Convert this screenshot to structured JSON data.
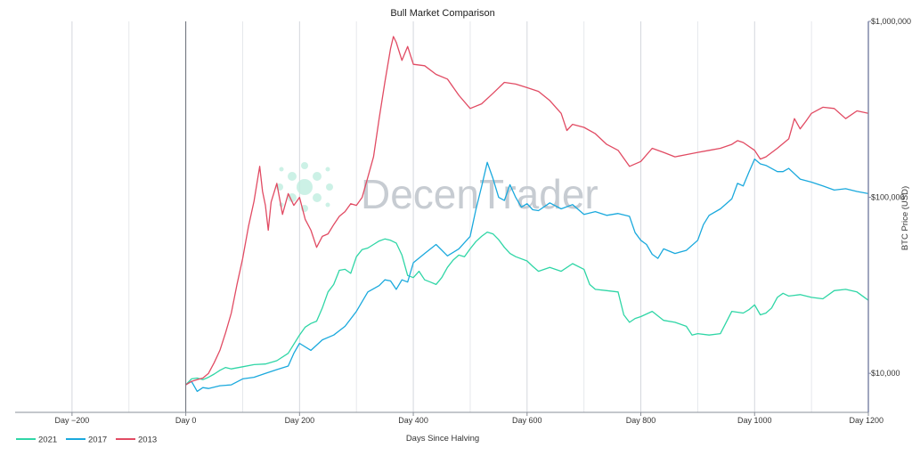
{
  "chart_data": {
    "type": "line",
    "title": "Bull Market Comparison",
    "xlabel": "Days Since Halving",
    "ylabel": "BTC Price (USD)",
    "xlim": [
      -300,
      1200
    ],
    "ylim": [
      6000,
      1000000
    ],
    "y_scale": "log",
    "grid": "vertical",
    "legend_position": "bottom-left",
    "x_ticks": [
      {
        "value": -200,
        "label": "Day −200"
      },
      {
        "value": 0,
        "label": "Day 0"
      },
      {
        "value": 200,
        "label": "Day 200"
      },
      {
        "value": 400,
        "label": "Day 400"
      },
      {
        "value": 600,
        "label": "Day 600"
      },
      {
        "value": 800,
        "label": "Day 800"
      },
      {
        "value": 1000,
        "label": "Day 1000"
      },
      {
        "value": 1200,
        "label": "Day 1200"
      }
    ],
    "y_ticks": [
      {
        "value": 10000,
        "label": "$10,000"
      },
      {
        "value": 100000,
        "label": "$100,000"
      },
      {
        "value": 1000000,
        "label": "$1,000,000"
      }
    ],
    "series": [
      {
        "name": "2021",
        "color": "#2fd6a6",
        "points": [
          [
            0,
            8600
          ],
          [
            10,
            9300
          ],
          [
            20,
            9400
          ],
          [
            30,
            9200
          ],
          [
            40,
            9500
          ],
          [
            50,
            9900
          ],
          [
            60,
            10400
          ],
          [
            70,
            10800
          ],
          [
            80,
            10600
          ],
          [
            100,
            10900
          ],
          [
            120,
            11200
          ],
          [
            140,
            11300
          ],
          [
            160,
            11800
          ],
          [
            180,
            13000
          ],
          [
            200,
            16500
          ],
          [
            210,
            18300
          ],
          [
            220,
            19200
          ],
          [
            230,
            19800
          ],
          [
            240,
            23500
          ],
          [
            250,
            29000
          ],
          [
            260,
            32000
          ],
          [
            270,
            38500
          ],
          [
            280,
            39000
          ],
          [
            290,
            37000
          ],
          [
            300,
            46000
          ],
          [
            310,
            50500
          ],
          [
            320,
            51500
          ],
          [
            330,
            54000
          ],
          [
            340,
            56500
          ],
          [
            350,
            58000
          ],
          [
            360,
            57000
          ],
          [
            370,
            55000
          ],
          [
            380,
            47000
          ],
          [
            390,
            36000
          ],
          [
            400,
            35000
          ],
          [
            410,
            38000
          ],
          [
            420,
            34000
          ],
          [
            430,
            33000
          ],
          [
            440,
            32000
          ],
          [
            450,
            35000
          ],
          [
            460,
            40000
          ],
          [
            470,
            44000
          ],
          [
            480,
            47000
          ],
          [
            490,
            46000
          ],
          [
            500,
            51000
          ],
          [
            510,
            56000
          ],
          [
            520,
            60000
          ],
          [
            530,
            63500
          ],
          [
            540,
            62000
          ],
          [
            550,
            57500
          ],
          [
            560,
            52000
          ],
          [
            570,
            48000
          ],
          [
            580,
            46000
          ],
          [
            600,
            43500
          ],
          [
            610,
            40500
          ],
          [
            620,
            38000
          ],
          [
            640,
            40000
          ],
          [
            660,
            38000
          ],
          [
            680,
            42000
          ],
          [
            700,
            39000
          ],
          [
            710,
            32000
          ],
          [
            720,
            30000
          ],
          [
            740,
            29500
          ],
          [
            760,
            29000
          ],
          [
            770,
            21500
          ],
          [
            780,
            19500
          ],
          [
            790,
            20500
          ],
          [
            800,
            21000
          ],
          [
            820,
            22500
          ],
          [
            840,
            20000
          ],
          [
            860,
            19500
          ],
          [
            880,
            18500
          ],
          [
            890,
            16500
          ],
          [
            900,
            16800
          ],
          [
            920,
            16500
          ],
          [
            940,
            16800
          ],
          [
            960,
            22500
          ],
          [
            980,
            22000
          ],
          [
            990,
            23000
          ],
          [
            1000,
            24500
          ],
          [
            1010,
            21500
          ],
          [
            1020,
            22000
          ],
          [
            1030,
            23500
          ],
          [
            1040,
            27000
          ],
          [
            1050,
            28500
          ],
          [
            1060,
            27500
          ],
          [
            1080,
            28000
          ],
          [
            1100,
            27000
          ],
          [
            1120,
            26500
          ],
          [
            1140,
            29500
          ],
          [
            1160,
            30000
          ],
          [
            1180,
            29000
          ],
          [
            1200,
            26000
          ]
        ]
      },
      {
        "name": "2017",
        "color": "#1aa9dd",
        "points": [
          [
            0,
            8600
          ],
          [
            10,
            9000
          ],
          [
            20,
            7900
          ],
          [
            30,
            8300
          ],
          [
            40,
            8200
          ],
          [
            60,
            8500
          ],
          [
            80,
            8600
          ],
          [
            100,
            9300
          ],
          [
            120,
            9500
          ],
          [
            140,
            10000
          ],
          [
            160,
            10500
          ],
          [
            180,
            11000
          ],
          [
            190,
            13000
          ],
          [
            200,
            14800
          ],
          [
            220,
            13500
          ],
          [
            240,
            15500
          ],
          [
            260,
            16500
          ],
          [
            280,
            18500
          ],
          [
            300,
            22500
          ],
          [
            320,
            29000
          ],
          [
            340,
            31500
          ],
          [
            350,
            34000
          ],
          [
            360,
            33500
          ],
          [
            370,
            30000
          ],
          [
            380,
            34000
          ],
          [
            390,
            33000
          ],
          [
            400,
            42500
          ],
          [
            420,
            48000
          ],
          [
            440,
            54000
          ],
          [
            460,
            46500
          ],
          [
            480,
            51000
          ],
          [
            500,
            60000
          ],
          [
            510,
            85000
          ],
          [
            520,
            115000
          ],
          [
            530,
            158000
          ],
          [
            540,
            128000
          ],
          [
            550,
            100000
          ],
          [
            560,
            96000
          ],
          [
            570,
            118000
          ],
          [
            580,
            100000
          ],
          [
            590,
            88000
          ],
          [
            600,
            92000
          ],
          [
            610,
            85000
          ],
          [
            620,
            84000
          ],
          [
            640,
            93000
          ],
          [
            660,
            86000
          ],
          [
            680,
            91000
          ],
          [
            700,
            80000
          ],
          [
            720,
            83000
          ],
          [
            740,
            79000
          ],
          [
            760,
            81000
          ],
          [
            780,
            78000
          ],
          [
            790,
            63000
          ],
          [
            800,
            57000
          ],
          [
            810,
            54000
          ],
          [
            820,
            47500
          ],
          [
            830,
            45000
          ],
          [
            840,
            51000
          ],
          [
            860,
            48000
          ],
          [
            880,
            50000
          ],
          [
            900,
            57000
          ],
          [
            910,
            70000
          ],
          [
            920,
            79000
          ],
          [
            940,
            86000
          ],
          [
            960,
            98000
          ],
          [
            970,
            120000
          ],
          [
            980,
            116000
          ],
          [
            990,
            139000
          ],
          [
            1000,
            165000
          ],
          [
            1010,
            155000
          ],
          [
            1020,
            152000
          ],
          [
            1040,
            140000
          ],
          [
            1050,
            140000
          ],
          [
            1060,
            146000
          ],
          [
            1080,
            127000
          ],
          [
            1100,
            122000
          ],
          [
            1120,
            116000
          ],
          [
            1140,
            110000
          ],
          [
            1160,
            112000
          ],
          [
            1180,
            108000
          ],
          [
            1200,
            105000
          ]
        ]
      },
      {
        "name": "2013",
        "color": "#e14b63",
        "points": [
          [
            0,
            8600
          ],
          [
            10,
            9000
          ],
          [
            20,
            9200
          ],
          [
            30,
            9400
          ],
          [
            40,
            10000
          ],
          [
            50,
            11500
          ],
          [
            60,
            13500
          ],
          [
            70,
            17000
          ],
          [
            80,
            22000
          ],
          [
            90,
            32000
          ],
          [
            100,
            45000
          ],
          [
            110,
            68000
          ],
          [
            120,
            95000
          ],
          [
            130,
            150000
          ],
          [
            135,
            108000
          ],
          [
            140,
            90000
          ],
          [
            145,
            65000
          ],
          [
            150,
            94000
          ],
          [
            160,
            120000
          ],
          [
            170,
            80000
          ],
          [
            180,
            105000
          ],
          [
            190,
            90000
          ],
          [
            200,
            100000
          ],
          [
            210,
            75000
          ],
          [
            220,
            65000
          ],
          [
            230,
            52000
          ],
          [
            240,
            60000
          ],
          [
            250,
            62000
          ],
          [
            260,
            70000
          ],
          [
            270,
            78000
          ],
          [
            280,
            83000
          ],
          [
            290,
            92000
          ],
          [
            300,
            90000
          ],
          [
            310,
            100000
          ],
          [
            320,
            130000
          ],
          [
            330,
            170000
          ],
          [
            340,
            280000
          ],
          [
            350,
            450000
          ],
          [
            360,
            700000
          ],
          [
            365,
            820000
          ],
          [
            370,
            760000
          ],
          [
            380,
            600000
          ],
          [
            390,
            720000
          ],
          [
            400,
            570000
          ],
          [
            420,
            560000
          ],
          [
            440,
            500000
          ],
          [
            460,
            470000
          ],
          [
            480,
            380000
          ],
          [
            500,
            320000
          ],
          [
            520,
            340000
          ],
          [
            540,
            390000
          ],
          [
            560,
            450000
          ],
          [
            580,
            440000
          ],
          [
            600,
            420000
          ],
          [
            620,
            400000
          ],
          [
            640,
            355000
          ],
          [
            660,
            300000
          ],
          [
            670,
            240000
          ],
          [
            680,
            260000
          ],
          [
            700,
            250000
          ],
          [
            720,
            230000
          ],
          [
            740,
            200000
          ],
          [
            760,
            185000
          ],
          [
            780,
            150000
          ],
          [
            800,
            160000
          ],
          [
            820,
            190000
          ],
          [
            840,
            180000
          ],
          [
            860,
            170000
          ],
          [
            880,
            175000
          ],
          [
            900,
            180000
          ],
          [
            920,
            185000
          ],
          [
            940,
            190000
          ],
          [
            960,
            200000
          ],
          [
            970,
            210000
          ],
          [
            980,
            205000
          ],
          [
            1000,
            185000
          ],
          [
            1010,
            165000
          ],
          [
            1020,
            170000
          ],
          [
            1040,
            190000
          ],
          [
            1060,
            215000
          ],
          [
            1070,
            280000
          ],
          [
            1080,
            245000
          ],
          [
            1090,
            270000
          ],
          [
            1100,
            300000
          ],
          [
            1120,
            325000
          ],
          [
            1140,
            320000
          ],
          [
            1160,
            280000
          ],
          [
            1180,
            310000
          ],
          [
            1200,
            300000
          ]
        ]
      }
    ]
  },
  "watermark": {
    "text": "DecenTrader"
  }
}
